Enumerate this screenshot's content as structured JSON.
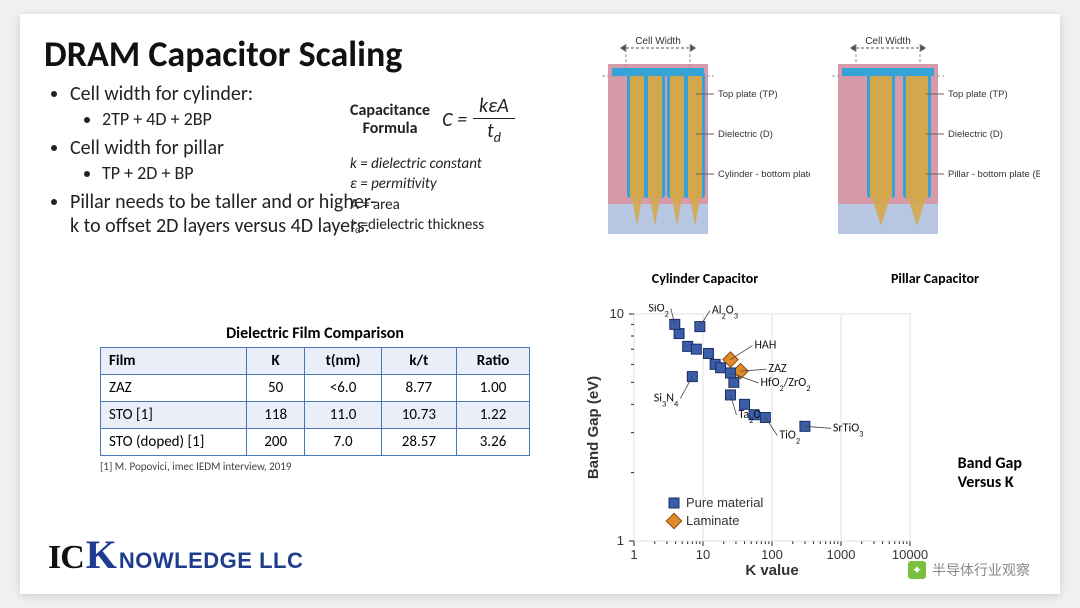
{
  "title": "DRAM Capacitor Scaling",
  "bullets": {
    "b1": "Cell width for cylinder:",
    "b1a": "2TP + 4D + 2BP",
    "b2": "Cell width for pillar",
    "b2a": "TP + 2D + BP",
    "b3": "Pillar needs to be taller and or higher-k to offset 2D layers versus 4D layers."
  },
  "formula": {
    "label_l1": "Capacitance",
    "label_l2": "Formula",
    "lhs": "C =",
    "num": "kεA",
    "den": "t",
    "den_sub": "d",
    "k": "k = dielectric constant",
    "eps": "ε = permitivity",
    "A": "A = area",
    "td": "t",
    "td_sub": "d",
    "td_rest": "=dielectric thickness"
  },
  "table": {
    "title": "Dielectric Film Comparison",
    "columns": [
      "Film",
      "K",
      "t(nm)",
      "k/t",
      "Ratio"
    ],
    "rows": [
      [
        "ZAZ",
        "50",
        "<6.0",
        "8.77",
        "1.00"
      ],
      [
        "STO [1]",
        "118",
        "11.0",
        "10.73",
        "1.22"
      ],
      [
        "STO (doped)  [1]",
        "200",
        "7.0",
        "28.57",
        "3.26"
      ]
    ],
    "header_bg": "#e9eef8",
    "border_color": "#4a74b8",
    "citation": "[1] M. Popovici, imec IEDM interview, 2019"
  },
  "logo": {
    "ic": "IC",
    "k": "K",
    "rest": "NOWLEDGE LLC"
  },
  "diagrams": {
    "cell_width_label": "Cell Width",
    "cylinder": {
      "caption": "Cylinder Capacitor",
      "labels": {
        "tp": "Top plate (TP)",
        "d": "Dielectric (D)",
        "bp": "Cylinder - bottom plate (BP)"
      }
    },
    "pillar": {
      "caption": "Pillar Capacitor",
      "labels": {
        "tp": "Top plate (TP)",
        "d": "Dielectric (D)",
        "bp": "Pillar - bottom plate (BP)"
      }
    },
    "colors": {
      "top_plate": "#d79aa9",
      "dielectric": "#35a3d6",
      "bottom_plate": "#d3a84c",
      "substrate": "#b7c7e2",
      "outline": "#888"
    }
  },
  "scatter": {
    "type": "scatter",
    "title_l1": "Band Gap",
    "title_l2": "Versus K",
    "xlabel": "K value",
    "ylabel": "Band Gap (eV)",
    "x_log": true,
    "y_log": true,
    "xticks": [
      1,
      10,
      100,
      1000,
      10000
    ],
    "yticks": [
      1,
      10
    ],
    "marker_size": 10,
    "marker_color": "#3b5ea8",
    "marker_border": "#1b2e66",
    "laminate_color": "#e08a2a",
    "laminate_border": "#8a4a10",
    "grid_color": "#e0e0e0",
    "background_color": "#ffffff",
    "axis_color": "#222",
    "font_size_axis": 13,
    "font_size_labels": 12,
    "legend": {
      "pure": "Pure material",
      "laminate": "Laminate"
    },
    "annotations": [
      {
        "label": "SiO2",
        "k": 3.9,
        "bg": 9.0,
        "dx": -4,
        "dy": -16
      },
      {
        "label": "Al2O3",
        "k": 9,
        "bg": 8.8,
        "dx": 10,
        "dy": -16
      },
      {
        "label": "HAH",
        "k": 25,
        "bg": 6.3,
        "dx": 22,
        "dy": -14,
        "laminate": true
      },
      {
        "label": "ZAZ",
        "k": 35,
        "bg": 5.6,
        "dx": 26,
        "dy": -2,
        "laminate": true
      },
      {
        "label": "HfO2/ZrO2",
        "k": 25,
        "bg": 5.5,
        "dx": 28,
        "dy": 10
      },
      {
        "label": "Si3N4",
        "k": 7,
        "bg": 5.3,
        "dx": -12,
        "dy": 22
      },
      {
        "label": "Ta2O5",
        "k": 25,
        "bg": 4.4,
        "dx": 6,
        "dy": 20
      },
      {
        "label": "TiO2",
        "k": 80,
        "bg": 3.5,
        "dx": 12,
        "dy": 18
      },
      {
        "label": "SrTiO3",
        "k": 300,
        "bg": 3.2,
        "dx": 26,
        "dy": 2
      }
    ],
    "points_extra": [
      {
        "k": 4.5,
        "bg": 8.2
      },
      {
        "k": 6,
        "bg": 7.2
      },
      {
        "k": 8,
        "bg": 7.0
      },
      {
        "k": 12,
        "bg": 6.7
      },
      {
        "k": 15,
        "bg": 6.0
      },
      {
        "k": 18,
        "bg": 5.8
      },
      {
        "k": 28,
        "bg": 5.0
      },
      {
        "k": 40,
        "bg": 4.0
      },
      {
        "k": 55,
        "bg": 3.6
      }
    ]
  },
  "watermark": "半导体行业观察"
}
